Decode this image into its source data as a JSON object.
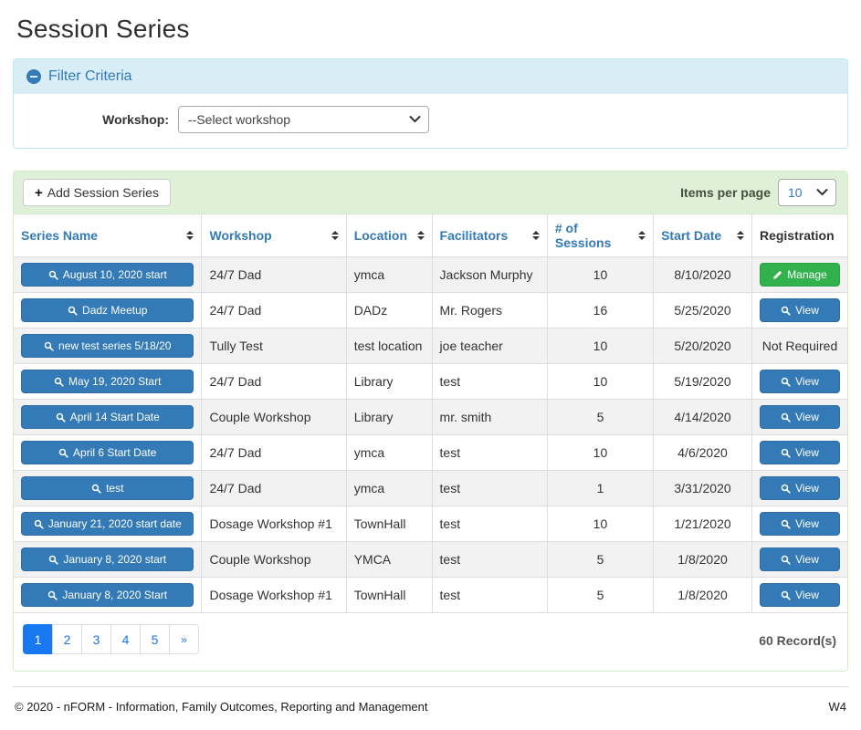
{
  "page_title": "Session Series",
  "filter": {
    "title": "Filter Criteria",
    "workshop_label": "Workshop:",
    "workshop_value": "--Select workshop"
  },
  "toolbar": {
    "add_button_label": "Add Session Series",
    "items_per_page_label": "Items per page",
    "items_per_page_value": "10"
  },
  "table": {
    "columns": [
      {
        "label": "Series Name",
        "sortable": true
      },
      {
        "label": "Workshop",
        "sortable": true
      },
      {
        "label": "Location",
        "sortable": true
      },
      {
        "label": "Facilitators",
        "sortable": true
      },
      {
        "label": "# of Sessions",
        "sortable": true
      },
      {
        "label": "Start Date",
        "sortable": true
      },
      {
        "label": "Registration",
        "sortable": false
      }
    ],
    "rows": [
      {
        "series_name": "August 10, 2020 start",
        "workshop": "24/7 Dad",
        "location": "ymca",
        "facilitators": "Jackson Murphy",
        "sessions": "10",
        "start_date": "8/10/2020",
        "registration": {
          "type": "manage",
          "label": "Manage"
        }
      },
      {
        "series_name": "Dadz Meetup",
        "workshop": "24/7 Dad",
        "location": "DADz",
        "facilitators": "Mr. Rogers",
        "sessions": "16",
        "start_date": "5/25/2020",
        "registration": {
          "type": "view",
          "label": "View"
        }
      },
      {
        "series_name": "new test series 5/18/20",
        "workshop": "Tully Test",
        "location": "test location",
        "facilitators": "joe teacher",
        "sessions": "10",
        "start_date": "5/20/2020",
        "registration": {
          "type": "none",
          "label": "Not Required"
        }
      },
      {
        "series_name": "May 19, 2020 Start",
        "workshop": "24/7 Dad",
        "location": "Library",
        "facilitators": "test",
        "sessions": "10",
        "start_date": "5/19/2020",
        "registration": {
          "type": "view",
          "label": "View"
        }
      },
      {
        "series_name": "April 14 Start Date",
        "workshop": "Couple Workshop",
        "location": "Library",
        "facilitators": "mr. smith",
        "sessions": "5",
        "start_date": "4/14/2020",
        "registration": {
          "type": "view",
          "label": "View"
        }
      },
      {
        "series_name": "April 6 Start Date",
        "workshop": "24/7 Dad",
        "location": "ymca",
        "facilitators": "test",
        "sessions": "10",
        "start_date": "4/6/2020",
        "registration": {
          "type": "view",
          "label": "View"
        }
      },
      {
        "series_name": "test",
        "workshop": "24/7 Dad",
        "location": "ymca",
        "facilitators": "test",
        "sessions": "1",
        "start_date": "3/31/2020",
        "registration": {
          "type": "view",
          "label": "View"
        }
      },
      {
        "series_name": "January 21, 2020 start date",
        "workshop": "Dosage Workshop #1",
        "location": "TownHall",
        "facilitators": "test",
        "sessions": "10",
        "start_date": "1/21/2020",
        "registration": {
          "type": "view",
          "label": "View"
        }
      },
      {
        "series_name": "January 8, 2020 start",
        "workshop": "Couple Workshop",
        "location": "YMCA",
        "facilitators": "test",
        "sessions": "5",
        "start_date": "1/8/2020",
        "registration": {
          "type": "view",
          "label": "View"
        }
      },
      {
        "series_name": "January 8, 2020 Start",
        "workshop": "Dosage Workshop #1",
        "location": "TownHall",
        "facilitators": "test",
        "sessions": "5",
        "start_date": "1/8/2020",
        "registration": {
          "type": "view",
          "label": "View"
        }
      }
    ]
  },
  "pagination": {
    "pages": [
      "1",
      "2",
      "3",
      "4",
      "5",
      "»"
    ],
    "active_index": 0,
    "records_label": "60 Record(s)"
  },
  "footer": {
    "copyright": "© 2020 - nFORM - Information, Family Outcomes, Reporting and Management",
    "version": "W4"
  },
  "icons": {
    "collapse": "minus-circle-icon",
    "add": "plus-icon",
    "series_button": "search-icon",
    "view_button": "search-icon",
    "manage_button": "pencil-icon",
    "select": "chevron-down-icon",
    "sort": "sort-arrows-icon"
  },
  "colors": {
    "primary_blue": "#337ab7",
    "filter_header_bg": "#d9edf7",
    "filter_border": "#bce8f1",
    "panel_green_bg": "#dff0d8",
    "panel_green_border": "#d6e9c6",
    "manage_green": "#32b24c",
    "pagination_active_blue": "#1778f2",
    "row_stripe": "#f2f2f2",
    "table_border": "#dddddd"
  }
}
